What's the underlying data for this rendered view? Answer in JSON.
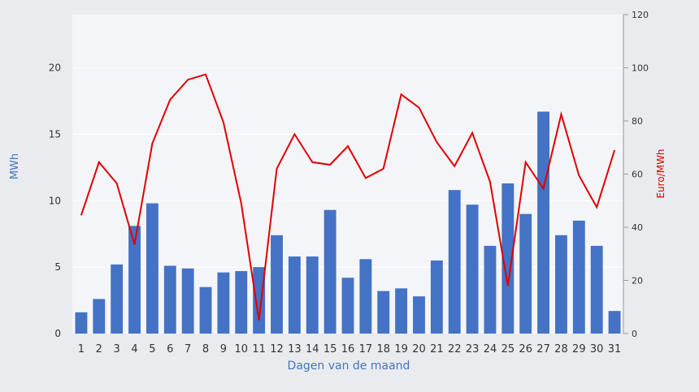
{
  "chart_data": {
    "type": "bar+line",
    "xlabel": "Dagen van de maand",
    "ylabel_left": "MWh",
    "ylabel_right": "Euro/MWh",
    "categories": [
      "1",
      "2",
      "3",
      "4",
      "5",
      "6",
      "7",
      "8",
      "9",
      "10",
      "11",
      "12",
      "13",
      "14",
      "15",
      "16",
      "17",
      "18",
      "19",
      "20",
      "21",
      "22",
      "23",
      "24",
      "25",
      "26",
      "27",
      "28",
      "29",
      "30",
      "31"
    ],
    "left_axis": {
      "min": 0,
      "max": 24,
      "ticks": [
        0,
        5,
        10,
        15,
        20
      ]
    },
    "right_axis": {
      "min": 0,
      "max": 120,
      "ticks": [
        0,
        20,
        40,
        60,
        80,
        100,
        120
      ]
    },
    "grid": true,
    "legend": "none",
    "colors": {
      "bars": "#4472c4",
      "line": "#e00000",
      "plot_bg": "#f4f5f9",
      "axis_text": "#333333",
      "axis_title": "#4472c4",
      "right_title": "#e00000"
    },
    "series": [
      {
        "axis": "left",
        "type": "bar",
        "values": [
          1.6,
          2.6,
          5.2,
          8.1,
          9.8,
          5.1,
          4.9,
          3.5,
          4.6,
          4.7,
          5.0,
          7.4,
          5.8,
          5.8,
          9.3,
          4.2,
          5.6,
          3.2,
          3.4,
          2.8,
          5.5,
          10.8,
          9.7,
          6.6,
          11.3,
          9.0,
          16.7,
          7.4,
          8.5,
          6.6,
          1.7
        ]
      },
      {
        "axis": "right",
        "type": "line",
        "values": [
          44.5,
          64.5,
          56.5,
          33.5,
          71.5,
          88.0,
          95.5,
          97.5,
          79.5,
          49.0,
          5.0,
          62.0,
          75.0,
          64.5,
          63.5,
          70.5,
          58.5,
          62.0,
          90.0,
          85.0,
          72.0,
          63.0,
          75.5,
          57.0,
          18.0,
          64.5,
          54.5,
          82.5,
          59.5,
          47.5,
          69.0
        ]
      }
    ]
  }
}
